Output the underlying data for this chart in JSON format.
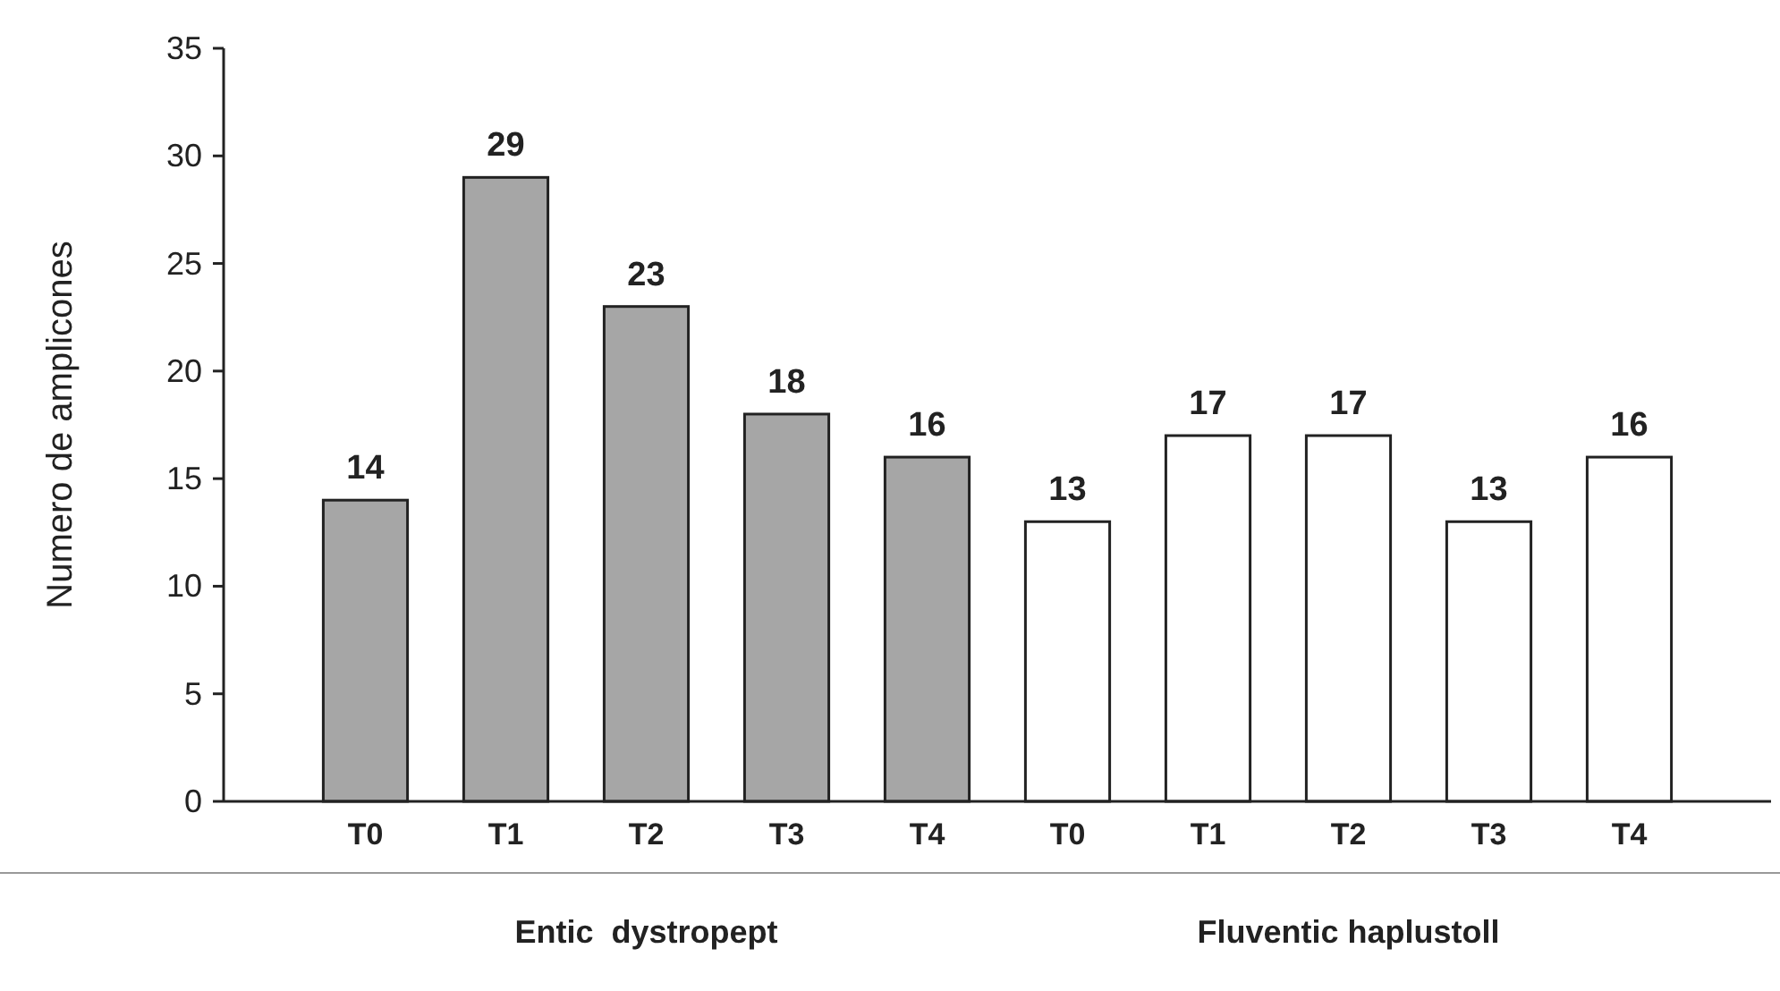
{
  "chart_data": {
    "type": "bar",
    "ylabel": "Numero de amplicones",
    "categories": [
      "T0",
      "T1",
      "T2",
      "T3",
      "T4",
      "T0",
      "T1",
      "T2",
      "T3",
      "T4"
    ],
    "values": [
      14,
      29,
      23,
      18,
      16,
      13,
      17,
      17,
      13,
      16
    ],
    "colors": [
      "#a6a6a6",
      "#a6a6a6",
      "#a6a6a6",
      "#a6a6a6",
      "#a6a6a6",
      "#ffffff",
      "#ffffff",
      "#ffffff",
      "#ffffff",
      "#ffffff"
    ],
    "annotations": [
      "Entic  dystropept",
      "Fluventic haplustoll"
    ],
    "ylim": [
      0,
      35
    ],
    "yticks": [
      0,
      5,
      10,
      15,
      20,
      25,
      30,
      35
    ],
    "data_labels": true
  }
}
